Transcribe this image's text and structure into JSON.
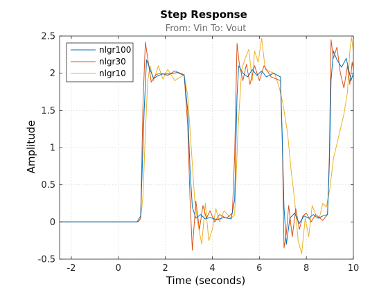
{
  "chart_data": {
    "type": "line",
    "title": "Step Response",
    "subtitle": "From: Vin  To: Vout",
    "xlabel": "Time (seconds)",
    "ylabel": "Amplitude",
    "xlim": [
      -2.5,
      10
    ],
    "ylim": [
      -0.5,
      2.5
    ],
    "xticks": [
      -2,
      0,
      2,
      4,
      6,
      8,
      10
    ],
    "yticks": [
      -0.5,
      0,
      0.5,
      1,
      1.5,
      2,
      2.5
    ],
    "xtick_labels": [
      "-2",
      "0",
      "2",
      "4",
      "6",
      "8",
      "10"
    ],
    "ytick_labels": [
      "-0.5",
      "0",
      "0.5",
      "1",
      "1.5",
      "2",
      "2.5"
    ],
    "grid": true,
    "legend_position": "top-left",
    "series": [
      {
        "name": "nlgr100",
        "color": "#0072BD",
        "points": [
          [
            -2.5,
            0
          ],
          [
            0.8,
            0
          ],
          [
            0.95,
            0.08
          ],
          [
            1.1,
            1.5
          ],
          [
            1.2,
            2.18
          ],
          [
            1.35,
            2.05
          ],
          [
            1.5,
            1.93
          ],
          [
            1.7,
            1.97
          ],
          [
            1.9,
            1.99
          ],
          [
            2.2,
            1.99
          ],
          [
            2.5,
            2.01
          ],
          [
            2.8,
            1.97
          ],
          [
            2.95,
            1.5
          ],
          [
            3.05,
            0.7
          ],
          [
            3.15,
            0.2
          ],
          [
            3.3,
            0.05
          ],
          [
            3.5,
            0.1
          ],
          [
            3.7,
            0.04
          ],
          [
            3.9,
            0.06
          ],
          [
            4.2,
            0.03
          ],
          [
            4.5,
            0.06
          ],
          [
            4.8,
            0.04
          ],
          [
            4.95,
            0.3
          ],
          [
            5.05,
            1.7
          ],
          [
            5.12,
            2.1
          ],
          [
            5.3,
            2.0
          ],
          [
            5.5,
            1.95
          ],
          [
            5.7,
            2.05
          ],
          [
            5.9,
            1.97
          ],
          [
            6.1,
            2.03
          ],
          [
            6.3,
            1.95
          ],
          [
            6.6,
            2.0
          ],
          [
            6.9,
            1.95
          ],
          [
            6.97,
            1.2
          ],
          [
            7.05,
            0.2
          ],
          [
            7.15,
            -0.3
          ],
          [
            7.3,
            0.05
          ],
          [
            7.5,
            0.12
          ],
          [
            7.7,
            -0.02
          ],
          [
            7.9,
            0.08
          ],
          [
            8.1,
            0.05
          ],
          [
            8.3,
            0.1
          ],
          [
            8.5,
            0.05
          ],
          [
            8.7,
            0.08
          ],
          [
            8.9,
            0.1
          ],
          [
            8.98,
            0.8
          ],
          [
            9.05,
            1.9
          ],
          [
            9.15,
            2.3
          ],
          [
            9.3,
            2.18
          ],
          [
            9.5,
            2.08
          ],
          [
            9.7,
            2.2
          ],
          [
            9.8,
            2.05
          ],
          [
            9.9,
            1.9
          ],
          [
            10,
            2.0
          ]
        ]
      },
      {
        "name": "nlgr30",
        "color": "#D95319",
        "points": [
          [
            -2.5,
            0
          ],
          [
            0.85,
            0
          ],
          [
            0.95,
            0.05
          ],
          [
            1.05,
            1.6
          ],
          [
            1.15,
            2.42
          ],
          [
            1.25,
            2.2
          ],
          [
            1.4,
            1.88
          ],
          [
            1.6,
            1.98
          ],
          [
            1.8,
            2.0
          ],
          [
            2.1,
            1.97
          ],
          [
            2.4,
            2.03
          ],
          [
            2.8,
            1.98
          ],
          [
            2.95,
            1.3
          ],
          [
            3.05,
            0.3
          ],
          [
            3.15,
            -0.38
          ],
          [
            3.3,
            0.28
          ],
          [
            3.45,
            -0.1
          ],
          [
            3.6,
            0.22
          ],
          [
            3.75,
            0.05
          ],
          [
            3.9,
            0.15
          ],
          [
            4.1,
            0.0
          ],
          [
            4.3,
            0.1
          ],
          [
            4.6,
            0.05
          ],
          [
            4.85,
            0.12
          ],
          [
            4.95,
            0.9
          ],
          [
            5.05,
            2.4
          ],
          [
            5.15,
            2.12
          ],
          [
            5.3,
            1.9
          ],
          [
            5.45,
            2.12
          ],
          [
            5.6,
            1.85
          ],
          [
            5.8,
            2.1
          ],
          [
            6.0,
            1.9
          ],
          [
            6.2,
            2.1
          ],
          [
            6.5,
            1.95
          ],
          [
            6.9,
            1.9
          ],
          [
            6.98,
            1.0
          ],
          [
            7.05,
            -0.35
          ],
          [
            7.15,
            -0.15
          ],
          [
            7.25,
            0.22
          ],
          [
            7.4,
            -0.2
          ],
          [
            7.55,
            0.18
          ],
          [
            7.7,
            -0.1
          ],
          [
            7.85,
            0.08
          ],
          [
            8.0,
            0.12
          ],
          [
            8.2,
            0.0
          ],
          [
            8.4,
            0.1
          ],
          [
            8.7,
            0.02
          ],
          [
            8.9,
            0.1
          ],
          [
            8.98,
            0.9
          ],
          [
            9.05,
            2.45
          ],
          [
            9.15,
            2.2
          ],
          [
            9.3,
            2.35
          ],
          [
            9.45,
            2.0
          ],
          [
            9.6,
            1.8
          ],
          [
            9.75,
            2.1
          ],
          [
            9.85,
            1.85
          ],
          [
            9.95,
            2.15
          ],
          [
            10,
            2.05
          ]
        ]
      },
      {
        "name": "nlgr10",
        "color": "#EDB120",
        "points": [
          [
            -2.5,
            0
          ],
          [
            0.85,
            0
          ],
          [
            0.95,
            0.05
          ],
          [
            1.05,
            0.35
          ],
          [
            1.15,
            1.2
          ],
          [
            1.25,
            1.9
          ],
          [
            1.35,
            2.1
          ],
          [
            1.5,
            1.9
          ],
          [
            1.7,
            2.1
          ],
          [
            1.9,
            1.92
          ],
          [
            2.1,
            2.05
          ],
          [
            2.4,
            1.9
          ],
          [
            2.8,
            1.98
          ],
          [
            2.95,
            1.7
          ],
          [
            3.1,
            1.0
          ],
          [
            3.25,
            0.3
          ],
          [
            3.4,
            -0.05
          ],
          [
            3.55,
            -0.3
          ],
          [
            3.7,
            0.25
          ],
          [
            3.85,
            -0.25
          ],
          [
            4.0,
            -0.1
          ],
          [
            4.15,
            0.18
          ],
          [
            4.3,
            0.0
          ],
          [
            4.5,
            0.15
          ],
          [
            4.8,
            0.05
          ],
          [
            4.95,
            0.1
          ],
          [
            5.1,
            1.3
          ],
          [
            5.25,
            2.05
          ],
          [
            5.4,
            2.2
          ],
          [
            5.55,
            2.32
          ],
          [
            5.7,
            1.9
          ],
          [
            5.8,
            2.3
          ],
          [
            5.95,
            2.15
          ],
          [
            6.1,
            2.47
          ],
          [
            6.25,
            2.05
          ],
          [
            6.45,
            2.02
          ],
          [
            6.65,
            2.0
          ],
          [
            6.85,
            1.8
          ],
          [
            7.0,
            1.6
          ],
          [
            7.2,
            1.2
          ],
          [
            7.35,
            0.7
          ],
          [
            7.5,
            0.3
          ],
          [
            7.65,
            -0.25
          ],
          [
            7.8,
            -0.43
          ],
          [
            7.95,
            0.05
          ],
          [
            8.1,
            -0.2
          ],
          [
            8.25,
            0.22
          ],
          [
            8.4,
            0.1
          ],
          [
            8.55,
            0.05
          ],
          [
            8.7,
            0.25
          ],
          [
            8.85,
            0.2
          ],
          [
            9.0,
            0.45
          ],
          [
            9.15,
            0.85
          ],
          [
            9.3,
            1.05
          ],
          [
            9.45,
            1.25
          ],
          [
            9.6,
            1.45
          ],
          [
            9.75,
            1.75
          ],
          [
            9.85,
            2.3
          ],
          [
            9.92,
            2.48
          ],
          [
            10,
            2.3
          ]
        ]
      }
    ]
  }
}
